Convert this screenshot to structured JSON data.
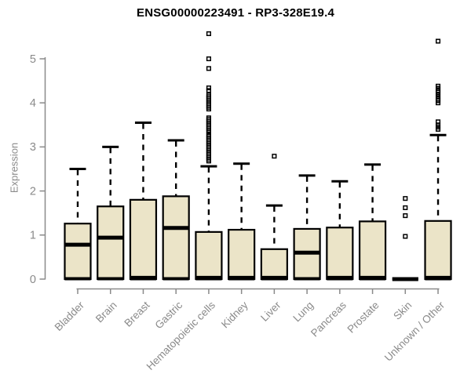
{
  "chart_data": {
    "type": "boxplot",
    "title": "ENSG00000223491 - RP3-328E19.4",
    "ylabel": "Expression",
    "xlabel": "",
    "ylim": [
      0,
      5.75
    ],
    "yticks": [
      0,
      1,
      2,
      3,
      4,
      5
    ],
    "grid": false,
    "legend": "none",
    "categories": [
      "Bladder",
      "Brain",
      "Breast",
      "Gastric",
      "Hematopoietic cells",
      "Kidney",
      "Liver",
      "Lung",
      "Pancreas",
      "Prostate",
      "Skin",
      "Unknown / Other"
    ],
    "boxes": [
      {
        "category": "Bladder",
        "low": 0,
        "q1": 0,
        "median": 0.78,
        "q3": 1.26,
        "high": 2.5,
        "outliers": []
      },
      {
        "category": "Brain",
        "low": 0,
        "q1": 0,
        "median": 0.94,
        "q3": 1.65,
        "high": 3.0,
        "outliers": []
      },
      {
        "category": "Breast",
        "low": 0,
        "q1": 0,
        "median": 0.03,
        "q3": 1.8,
        "high": 3.55,
        "outliers": []
      },
      {
        "category": "Gastric",
        "low": 0,
        "q1": 0,
        "median": 1.16,
        "q3": 1.88,
        "high": 3.15,
        "outliers": []
      },
      {
        "category": "Hematopoietic cells",
        "low": 0,
        "q1": 0,
        "median": 0.03,
        "q3": 1.07,
        "high": 2.56,
        "outliers": [
          2.68,
          2.72,
          2.76,
          2.8,
          2.84,
          2.88,
          2.92,
          2.96,
          3.0,
          3.04,
          3.08,
          3.12,
          3.16,
          3.2,
          3.24,
          3.28,
          3.34,
          3.38,
          3.42,
          3.46,
          3.5,
          3.54,
          3.58,
          3.62,
          3.66,
          3.86,
          3.9,
          3.94,
          3.98,
          4.02,
          4.06,
          4.1,
          4.14,
          4.18,
          4.28,
          4.34,
          4.78,
          5.0,
          5.57
        ]
      },
      {
        "category": "Kidney",
        "low": 0,
        "q1": 0,
        "median": 0.03,
        "q3": 1.12,
        "high": 2.62,
        "outliers": []
      },
      {
        "category": "Liver",
        "low": 0,
        "q1": 0,
        "median": 0.03,
        "q3": 0.68,
        "high": 1.67,
        "outliers": [
          2.79
        ]
      },
      {
        "category": "Lung",
        "low": 0,
        "q1": 0,
        "median": 0.6,
        "q3": 1.14,
        "high": 2.35,
        "outliers": []
      },
      {
        "category": "Pancreas",
        "low": 0,
        "q1": 0,
        "median": 0.03,
        "q3": 1.17,
        "high": 2.22,
        "outliers": []
      },
      {
        "category": "Prostate",
        "low": 0,
        "q1": 0,
        "median": 0.03,
        "q3": 1.31,
        "high": 2.6,
        "outliers": []
      },
      {
        "category": "Skin",
        "low": 0,
        "q1": 0,
        "median": 0,
        "q3": 0,
        "high": 0,
        "outliers": [
          0.97,
          1.44,
          1.62,
          1.83
        ]
      },
      {
        "category": "Unknown / Other",
        "low": 0,
        "q1": 0,
        "median": 0.03,
        "q3": 1.32,
        "high": 3.27,
        "outliers": [
          3.4,
          3.45,
          3.5,
          3.57,
          4.0,
          4.05,
          4.09,
          4.14,
          4.19,
          4.24,
          4.28,
          4.33,
          4.38,
          5.4
        ]
      }
    ],
    "colors": {
      "box_fill": "#ebe4c8",
      "box_border": "#000000",
      "median": "#000000",
      "whisker": "#000000",
      "outlier": "#000000",
      "axis": "#8a8a8a",
      "tick_label": "#8a8a8a",
      "title": "#000000",
      "background": "#ffffff"
    }
  }
}
